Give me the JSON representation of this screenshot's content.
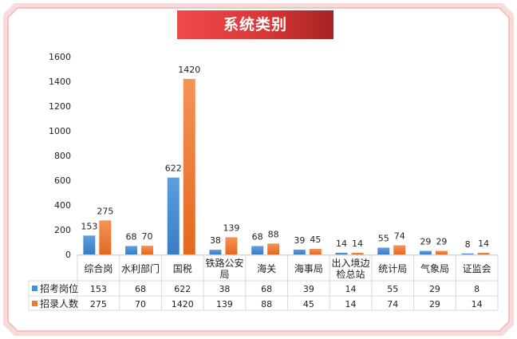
{
  "chart_data": {
    "type": "bar",
    "title": "系统类别",
    "categories": [
      "综合岗",
      "水利部门",
      "国税",
      "铁路公安局",
      "海关",
      "海事局",
      "出入境边检总站",
      "统计局",
      "气象局",
      "证监会"
    ],
    "category_lines": [
      [
        "综合岗"
      ],
      [
        "水利部门"
      ],
      [
        "国税"
      ],
      [
        "铁路公安",
        "局"
      ],
      [
        "海关"
      ],
      [
        "海事局"
      ],
      [
        "出入境边",
        "检总站"
      ],
      [
        "统计局"
      ],
      [
        "气象局"
      ],
      [
        "证监会"
      ]
    ],
    "series": [
      {
        "name": "招考岗位",
        "values": [
          153,
          68,
          622,
          38,
          68,
          39,
          14,
          55,
          29,
          8
        ],
        "color": "#4a90d9"
      },
      {
        "name": "招录人数",
        "values": [
          275,
          70,
          1420,
          139,
          88,
          45,
          14,
          74,
          29,
          14
        ],
        "color": "#ef7a2e"
      }
    ],
    "ylim": [
      0,
      1600
    ],
    "yticks": [
      0,
      200,
      400,
      600,
      800,
      1000,
      1200,
      1400,
      1600
    ],
    "grid": false,
    "legend": "data-table"
  }
}
